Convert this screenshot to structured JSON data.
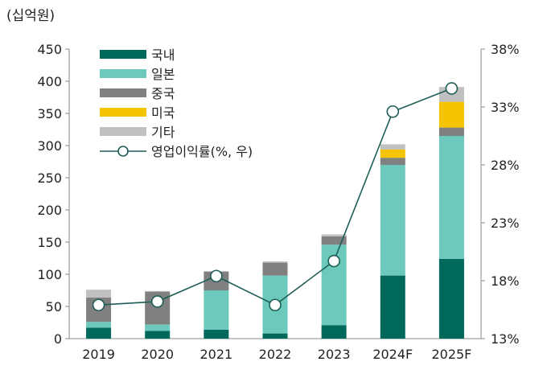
{
  "chart_data": {
    "type": "bar",
    "stacked": true,
    "unit_label": "(십억원)",
    "categories": [
      "2019",
      "2020",
      "2021",
      "2022",
      "2023",
      "2024F",
      "2025F"
    ],
    "series": [
      {
        "name": "국내",
        "color": "#00695c",
        "values": [
          17,
          12,
          14,
          8,
          21,
          98,
          124
        ]
      },
      {
        "name": "일본",
        "color": "#6cc9bb",
        "values": [
          9,
          10,
          61,
          90,
          125,
          172,
          191
        ]
      },
      {
        "name": "중국",
        "color": "#808080",
        "values": [
          38,
          51,
          29,
          20,
          13,
          11,
          13
        ]
      },
      {
        "name": "미국",
        "color": "#f5c400",
        "values": [
          0,
          0,
          0,
          0,
          0,
          13,
          40
        ]
      },
      {
        "name": "기타",
        "color": "#c0c0c0",
        "values": [
          12,
          1,
          1,
          2,
          3,
          8,
          23
        ]
      }
    ],
    "line": {
      "name": "영업이익률(%, 우)",
      "color": "#1f5e57",
      "values": [
        15.9,
        16.2,
        18.4,
        15.9,
        19.7,
        32.6,
        34.6
      ]
    },
    "y_left": {
      "min": 0,
      "max": 450,
      "step": 50,
      "tick_labels": [
        "0",
        "50",
        "100",
        "150",
        "200",
        "250",
        "300",
        "350",
        "400",
        "450"
      ]
    },
    "y_right": {
      "min": 13,
      "max": 38,
      "step": 5,
      "tick_labels": [
        "13%",
        "18%",
        "23%",
        "28%",
        "33%",
        "38%"
      ]
    },
    "grid": false,
    "legend_position": "top-left"
  }
}
